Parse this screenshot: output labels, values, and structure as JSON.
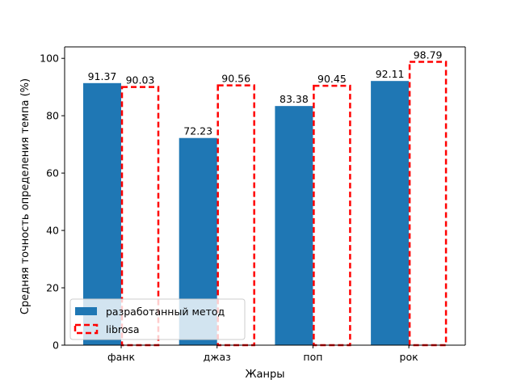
{
  "chart_data": {
    "type": "bar",
    "categories": [
      "фанк",
      "джаз",
      "поп",
      "рок"
    ],
    "series": [
      {
        "name": "разработанный метод",
        "values": [
          91.37,
          72.23,
          83.38,
          92.11
        ],
        "style": "filled",
        "color": "#1f77b4"
      },
      {
        "name": "librosa",
        "values": [
          90.03,
          90.56,
          90.45,
          98.79
        ],
        "style": "dashed-outline",
        "color": "#ff0000"
      }
    ],
    "value_labels": [
      [
        "91.37",
        "72.23",
        "83.38",
        "92.11"
      ],
      [
        "90.03",
        "90.56",
        "90.45",
        "98.79"
      ]
    ],
    "title": "",
    "xlabel": "Жанры",
    "ylabel": "Средняя точность определения темпа (%)",
    "ylim": [
      0,
      104
    ],
    "yticks": [
      0,
      20,
      40,
      60,
      80,
      100
    ],
    "ytick_labels": [
      "0",
      "20",
      "40",
      "60",
      "80",
      "100"
    ],
    "grid": false,
    "legend_position": "lower-left"
  }
}
